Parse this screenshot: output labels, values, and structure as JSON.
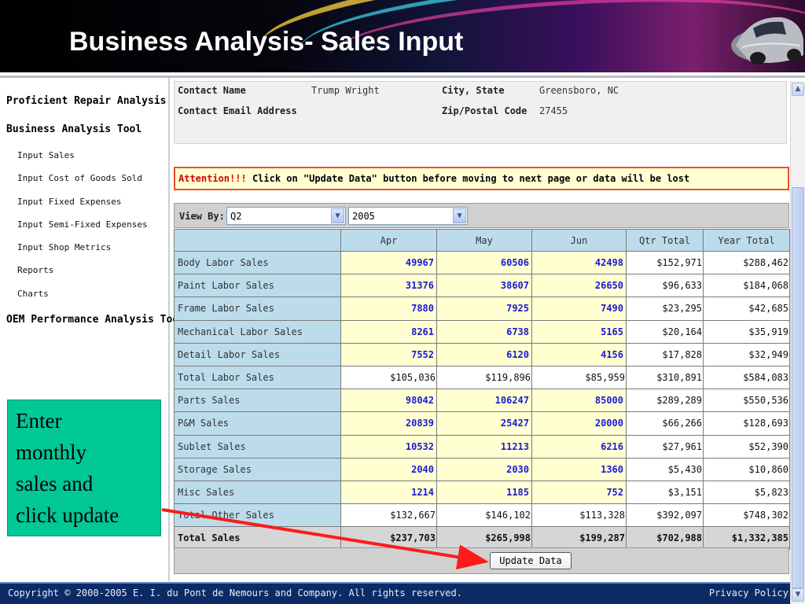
{
  "slide": {
    "title": "Business Analysis- Sales Input"
  },
  "sidebar": {
    "headings": [
      "Proficient Repair Analysis",
      "Business Analysis Tool",
      "OEM Performance Analysis Tool"
    ],
    "items": [
      "Input Sales",
      "Input Cost of Goods Sold",
      "Input Fixed Expenses",
      "Input Semi-Fixed Expenses",
      "Input Shop Metrics",
      "Reports",
      "Charts"
    ]
  },
  "contact": {
    "name_label": "Contact Name",
    "name_value": "Trump Wright",
    "email_label": "Contact Email Address",
    "email_value": "",
    "city_label": "City, State",
    "city_value": "Greensboro, NC",
    "zip_label": "Zip/Postal Code",
    "zip_value": "27455"
  },
  "attention": {
    "label": "Attention!!!",
    "message": "Click on \"Update Data\" button before moving to next page or data will be lost"
  },
  "viewby": {
    "label": "View By:",
    "quarter": "Q2",
    "year": "2005"
  },
  "table": {
    "headers": [
      "",
      "Apr",
      "May",
      "Jun",
      "Qtr Total",
      "Year Total"
    ],
    "rows": [
      {
        "label": "Body Labor Sales",
        "apr": "49967",
        "may": "60506",
        "jun": "42498",
        "qtr": "$152,971",
        "year": "$288,462"
      },
      {
        "label": "Paint Labor Sales",
        "apr": "31376",
        "may": "38607",
        "jun": "26650",
        "qtr": "$96,633",
        "year": "$184,068"
      },
      {
        "label": "Frame Labor Sales",
        "apr": "7880",
        "may": "7925",
        "jun": "7490",
        "qtr": "$23,295",
        "year": "$42,685"
      },
      {
        "label": "Mechanical Labor Sales",
        "apr": "8261",
        "may": "6738",
        "jun": "5165",
        "qtr": "$20,164",
        "year": "$35,919"
      },
      {
        "label": "Detail Labor Sales",
        "apr": "7552",
        "may": "6120",
        "jun": "4156",
        "qtr": "$17,828",
        "year": "$32,949"
      },
      {
        "label": "Total Labor Sales",
        "apr": "$105,036",
        "may": "$119,896",
        "jun": "$85,959",
        "qtr": "$310,891",
        "year": "$584,083"
      },
      {
        "label": "Parts Sales",
        "apr": "98042",
        "may": "106247",
        "jun": "85000",
        "qtr": "$289,289",
        "year": "$550,536"
      },
      {
        "label": "P&M Sales",
        "apr": "20839",
        "may": "25427",
        "jun": "20000",
        "qtr": "$66,266",
        "year": "$128,693"
      },
      {
        "label": "Sublet Sales",
        "apr": "10532",
        "may": "11213",
        "jun": "6216",
        "qtr": "$27,961",
        "year": "$52,390"
      },
      {
        "label": "Storage Sales",
        "apr": "2040",
        "may": "2030",
        "jun": "1360",
        "qtr": "$5,430",
        "year": "$10,860"
      },
      {
        "label": "Misc Sales",
        "apr": "1214",
        "may": "1185",
        "jun": "752",
        "qtr": "$3,151",
        "year": "$5,823"
      },
      {
        "label": "Total Other Sales",
        "apr": "$132,667",
        "may": "$146,102",
        "jun": "$113,328",
        "qtr": "$392,097",
        "year": "$748,302"
      },
      {
        "label": "Total Sales",
        "apr": "$237,703",
        "may": "$265,998",
        "jun": "$199,287",
        "qtr": "$702,988",
        "year": "$1,332,385"
      }
    ]
  },
  "update_button": "Update Data",
  "footer": {
    "copyright": "Copyright © 2000-2005 E. I. du Pont de Nemours and Company. All rights reserved.",
    "privacy": "Privacy Policy"
  },
  "callout": {
    "lines": [
      "Enter",
      "monthly",
      "sales and",
      "click update"
    ]
  },
  "colors": {
    "input_cell": "#ffffd2",
    "input_text": "#1a1ad6",
    "label_cell": "#bcdcec",
    "attention_border": "#e5512c",
    "footer": "#0c2b66",
    "callout": "#00c896",
    "arrow": "#ff1a1a"
  },
  "icons": [
    "chevron-down-icon",
    "scroll-up-icon",
    "scroll-down-icon",
    "car-icon",
    "arrow-annotation"
  ]
}
